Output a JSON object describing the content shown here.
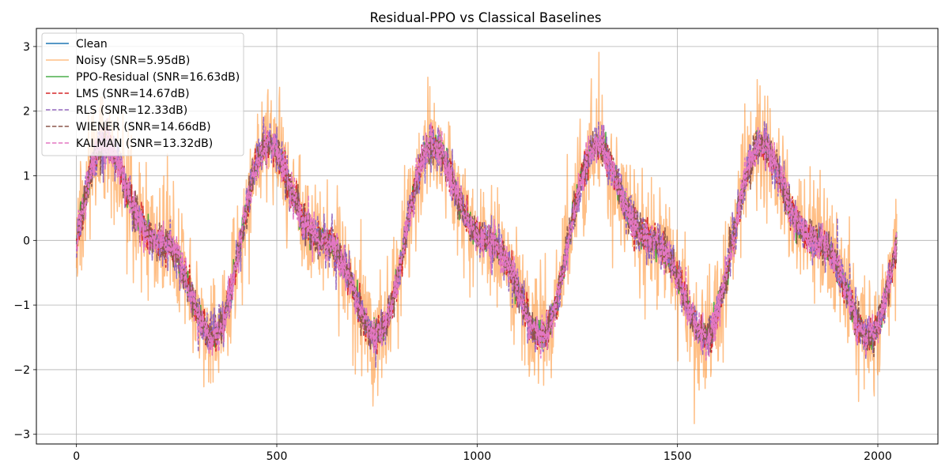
{
  "chart_data": {
    "type": "line",
    "title": "Residual-PPO vs Classical Baselines",
    "xlabel": "",
    "ylabel": "",
    "xlim": [
      -100,
      2150
    ],
    "ylim": [
      -3.15,
      3.28
    ],
    "x_ticks": [
      0,
      500,
      1000,
      1500,
      2000
    ],
    "y_ticks": [
      -3,
      -2,
      -1,
      0,
      1,
      2,
      3
    ],
    "x_tick_labels": [
      "0",
      "500",
      "1000",
      "1500",
      "2000"
    ],
    "y_tick_labels": [
      "−3",
      "−2",
      "−1",
      "0",
      "1",
      "2",
      "3"
    ],
    "grid": true,
    "legend_position": "upper-left",
    "n_samples": 2048,
    "clean_signal": {
      "components": [
        {
          "amplitude": 1.2,
          "period": 409.6,
          "phase": 0
        },
        {
          "amplitude": 0.5,
          "period": 204.8,
          "phase": 0
        }
      ]
    },
    "series": [
      {
        "name": "Clean",
        "label": "Clean",
        "color": "#1f77b4",
        "style": "solid",
        "width": 1.5,
        "opacity": 1.0,
        "noise_std": 0.0,
        "snr_db": null
      },
      {
        "name": "Noisy",
        "label": "Noisy (SNR=5.95dB)",
        "color": "#ff7f0e",
        "style": "solid",
        "width": 1.5,
        "opacity": 0.5,
        "noise_std": 0.45,
        "snr_db": 5.95
      },
      {
        "name": "PPO-Residual",
        "label": "PPO-Residual (SNR=16.63dB)",
        "color": "#2ca02c",
        "style": "solid",
        "width": 1.5,
        "opacity": 0.85,
        "noise_std": 0.1,
        "snr_db": 16.63
      },
      {
        "name": "LMS",
        "label": "LMS (SNR=14.67dB)",
        "color": "#d62728",
        "style": "dashed",
        "width": 1.5,
        "opacity": 1.0,
        "noise_std": 0.13,
        "snr_db": 14.67
      },
      {
        "name": "RLS",
        "label": "RLS (SNR=12.33dB)",
        "color": "#9467bd",
        "style": "dashed",
        "width": 1.5,
        "opacity": 1.0,
        "noise_std": 0.17,
        "snr_db": 12.33
      },
      {
        "name": "WIENER",
        "label": "WIENER (SNR=14.66dB)",
        "color": "#8c564b",
        "style": "dashed",
        "width": 1.5,
        "opacity": 1.0,
        "noise_std": 0.13,
        "snr_db": 14.66
      },
      {
        "name": "KALMAN",
        "label": "KALMAN (SNR=13.32dB)",
        "color": "#e377c2",
        "style": "dashed",
        "width": 1.5,
        "opacity": 1.0,
        "noise_std": 0.15,
        "snr_db": 13.32
      }
    ]
  }
}
